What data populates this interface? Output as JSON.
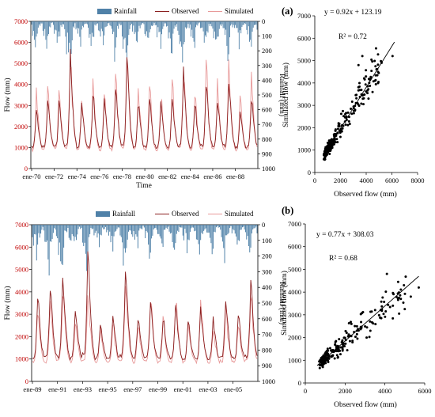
{
  "colors": {
    "rainfall": "#4f81a8",
    "observed": "#8b1f1f",
    "simulated": "#e89a9a",
    "scatter": "#000000",
    "flow_axis_ticks": "#c00000"
  },
  "chart_data": [
    {
      "id": "ts1",
      "type": "line",
      "legend": [
        "Rainfall",
        "Observed",
        "Simulated"
      ],
      "xlabel": "Time",
      "ylabel": "Flow (mm)",
      "y2label": "Rainfall (mm)",
      "x_ticks": [
        "ene-70",
        "ene-72",
        "ene-74",
        "ene-76",
        "ene-78",
        "ene-80",
        "ene-82",
        "ene-84",
        "ene-86",
        "ene-88"
      ],
      "ylim": [
        0,
        7000
      ],
      "y_ticks": [
        "0",
        "1000",
        "2000",
        "3000",
        "4000",
        "5000",
        "6000",
        "7000"
      ],
      "y2lim": [
        0,
        1000
      ],
      "y2_reversed": true,
      "y2_ticks": [
        "0",
        "100",
        "200",
        "300",
        "400",
        "500",
        "600",
        "700",
        "800",
        "900",
        "1000"
      ],
      "start_year": 1970,
      "years": 20,
      "seed": 7,
      "annual_observed_peaks": [
        2900,
        3400,
        3200,
        5300,
        3000,
        3600,
        3400,
        3800,
        5200,
        3100,
        3300,
        3000,
        3400,
        4600,
        3200,
        4200,
        3400,
        4400,
        2700,
        3400
      ],
      "annual_simulated_peaks": [
        3500,
        3700,
        3800,
        5400,
        3300,
        3900,
        3500,
        4200,
        5300,
        3700,
        3900,
        3600,
        4100,
        4500,
        3600,
        4800,
        3900,
        4700,
        3300,
        4100
      ],
      "annual_rain_peaks": [
        160,
        180,
        200,
        360,
        150,
        200,
        170,
        220,
        300,
        170,
        200,
        180,
        220,
        260,
        170,
        240,
        200,
        260,
        160,
        200
      ]
    },
    {
      "id": "sc1",
      "type": "scatter",
      "panel_label": "(a)",
      "equation": "y = 0.92x + 123.19",
      "r2": "R² = 0.72",
      "xlabel": "Observed flow (mm)",
      "ylabel": "Simulated flow (mm)",
      "xlim": [
        0,
        8000
      ],
      "ylim": [
        0,
        7000
      ],
      "x_ticks": [
        "0",
        "2000",
        "4000",
        "6000",
        "8000"
      ],
      "y_ticks": [
        "0",
        "1000",
        "2000",
        "3000",
        "4000",
        "5000",
        "6000",
        "7000"
      ],
      "trend": {
        "slope": 0.92,
        "intercept": 123.19,
        "x_range": [
          700,
          6200
        ]
      },
      "n_points": 240,
      "seed": 11,
      "x_extreme_points": [
        [
          6050,
          5200
        ],
        [
          5200,
          4900
        ],
        [
          4700,
          4100
        ],
        [
          3700,
          5200
        ],
        [
          3400,
          4800
        ]
      ]
    },
    {
      "id": "ts2",
      "type": "line",
      "legend": [
        "Rainfall",
        "Observed",
        "Simulated"
      ],
      "xlabel": "",
      "ylabel": "Flow (mm)",
      "y2label": "Rainfall (mm)",
      "x_ticks": [
        "ene-89",
        "ene-91",
        "ene-93",
        "ene-95",
        "ene-97",
        "ene-99",
        "ene-01",
        "ene-03",
        "ene-05"
      ],
      "ylim": [
        0,
        7000
      ],
      "y_ticks": [
        "0",
        "1000",
        "2000",
        "3000",
        "4000",
        "5000",
        "6000",
        "7000"
      ],
      "y2lim": [
        0,
        1000
      ],
      "y2_reversed": true,
      "y2_ticks": [
        "0",
        "100",
        "200",
        "300",
        "400",
        "500",
        "600",
        "700",
        "800",
        "900",
        "1000"
      ],
      "start_year": 1989,
      "years": 18,
      "seed": 23,
      "annual_observed_peaks": [
        3700,
        4200,
        4800,
        3300,
        5500,
        2700,
        3100,
        5200,
        3000,
        3500,
        2900,
        3400,
        2800,
        3200,
        2700,
        3600,
        3000,
        4300
      ],
      "annual_simulated_peaks": [
        3200,
        3600,
        4000,
        2900,
        4200,
        2300,
        2600,
        4400,
        2600,
        3900,
        2700,
        3800,
        2700,
        3600,
        2400,
        3200,
        2600,
        3900
      ],
      "annual_rain_peaks": [
        230,
        260,
        320,
        220,
        280,
        160,
        170,
        300,
        180,
        200,
        170,
        200,
        160,
        190,
        160,
        210,
        170,
        200
      ]
    },
    {
      "id": "sc2",
      "type": "scatter",
      "panel_label": "(b)",
      "equation": "y = 0.77x + 308.03",
      "r2": "R² = 0.68",
      "xlabel": "Observed flow (mm)",
      "ylabel": "Simulated flow (mm)",
      "xlim": [
        0,
        6000
      ],
      "ylim": [
        0,
        7000
      ],
      "x_ticks": [
        "0",
        "2000",
        "4000",
        "6000"
      ],
      "y_ticks": [
        "0",
        "1000",
        "2000",
        "3000",
        "4000",
        "5000",
        "6000",
        "7000"
      ],
      "trend": {
        "slope": 0.77,
        "intercept": 308.03,
        "x_range": [
          600,
          5700
        ]
      },
      "n_points": 230,
      "seed": 31,
      "x_extreme_points": [
        [
          5700,
          4200
        ],
        [
          5300,
          3800
        ],
        [
          4800,
          3700
        ],
        [
          4100,
          4800
        ],
        [
          4400,
          3400
        ]
      ]
    }
  ]
}
